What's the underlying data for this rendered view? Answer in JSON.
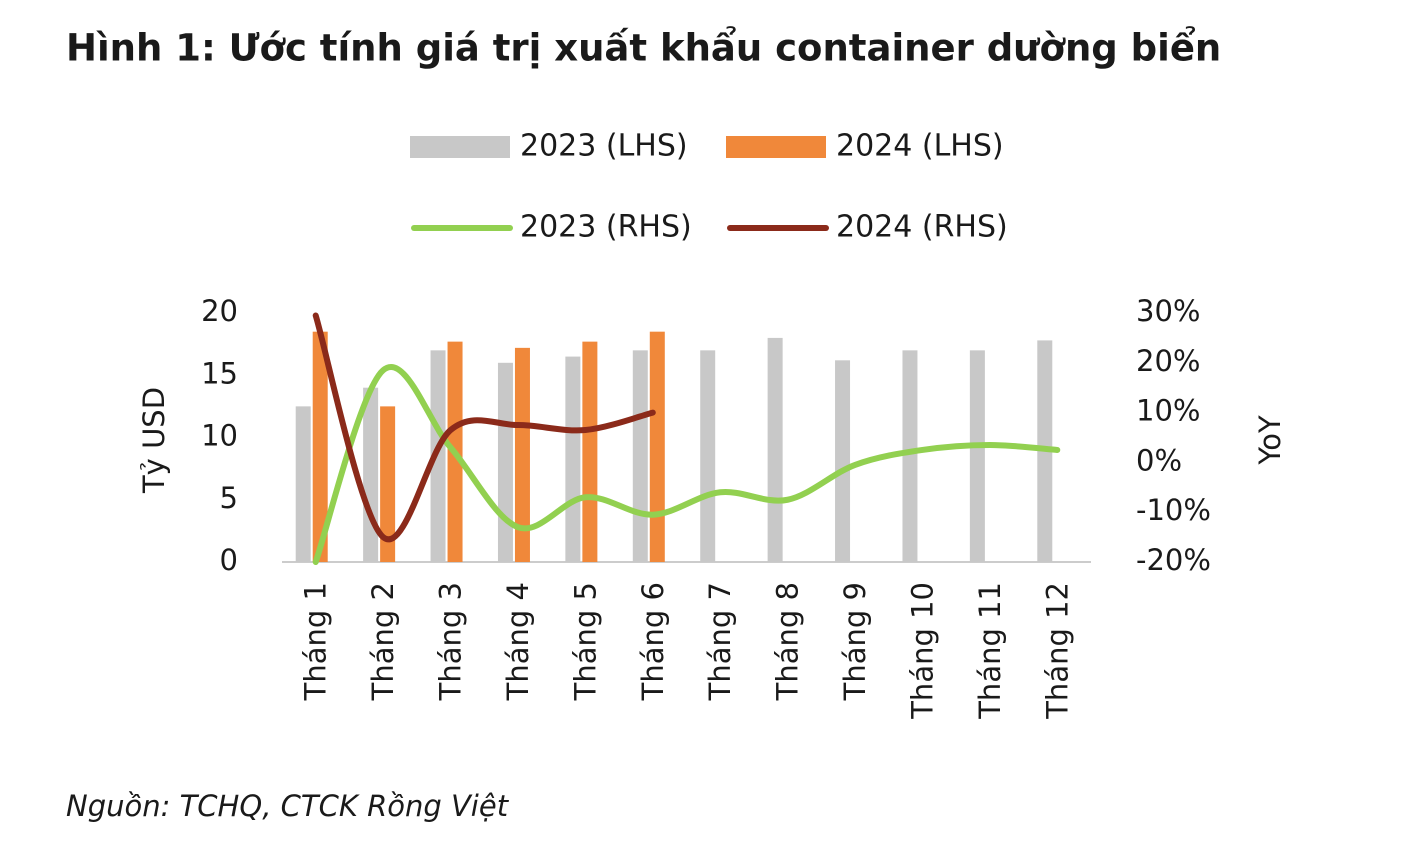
{
  "chart_data": {
    "type": "bar-line",
    "title": "Hình 1: Ước tính giá trị xuất khẩu container dường biển",
    "source": "Nguồn: TCHQ, CTCK Rồng Việt",
    "y_label": "Tỷ USD",
    "y2_label": "YoY",
    "categories": [
      "Tháng 1",
      "Tháng 2",
      "Tháng 3",
      "Tháng 4",
      "Tháng 5",
      "Tháng 6",
      "Tháng 7",
      "Tháng 8",
      "Tháng 9",
      "Tháng 10",
      "Tháng 11",
      "Tháng 12"
    ],
    "series": [
      {
        "name": "2023 (LHS)",
        "kind": "bar",
        "color": "#c8c8c8",
        "values": [
          12.5,
          14,
          17,
          16,
          16.5,
          17,
          17,
          18,
          16.2,
          17,
          17,
          17.8
        ]
      },
      {
        "name": "2024 (LHS)",
        "kind": "bar",
        "color": "#f0883a",
        "values": [
          18.5,
          12.5,
          17.7,
          17.2,
          17.7,
          18.5,
          null,
          null,
          null,
          null,
          null,
          null
        ]
      },
      {
        "name": "2023 (RHS)",
        "kind": "line",
        "axis": "y2",
        "color": "#92d050",
        "values": [
          -20,
          18.5,
          3,
          -13,
          -7,
          -10.5,
          -6,
          -7.5,
          -0.5,
          2.5,
          3.5,
          2.5
        ]
      },
      {
        "name": "2024 (RHS)",
        "kind": "line",
        "axis": "y2",
        "color": "#8b2a1a",
        "values": [
          29.5,
          -15,
          6.5,
          7.5,
          6.5,
          10,
          null,
          null,
          null,
          null,
          null,
          null
        ]
      }
    ],
    "ylim": [
      0,
      20
    ],
    "yticks": [
      0,
      5,
      10,
      15,
      20
    ],
    "y2lim": [
      -20,
      30
    ],
    "y2ticks": [
      {
        "value": -20,
        "label": "-20%"
      },
      {
        "value": -10,
        "label": "-10%"
      },
      {
        "value": 0,
        "label": "0%"
      },
      {
        "value": 10,
        "label": "10%"
      },
      {
        "value": 20,
        "label": "20%"
      },
      {
        "value": 30,
        "label": "30%"
      }
    ]
  }
}
